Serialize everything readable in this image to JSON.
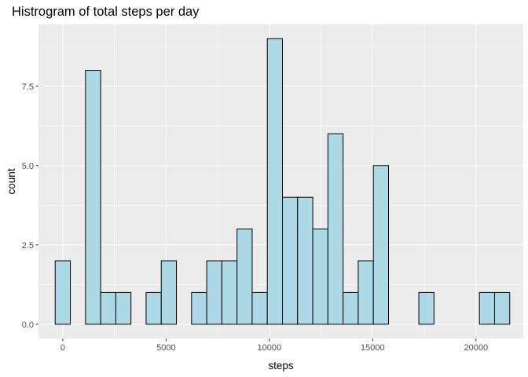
{
  "chart_data": {
    "type": "histogram",
    "title": "Histrogram of total steps per day",
    "xlabel": "steps",
    "ylabel": "count",
    "xlim": [
      -1175,
      22289
    ],
    "ylim": [
      -0.45,
      9.45
    ],
    "x_ticks": [
      0,
      5000,
      10000,
      15000,
      20000
    ],
    "x_tick_labels": [
      "0",
      "5000",
      "10000",
      "15000",
      "20000"
    ],
    "y_ticks": [
      0,
      2.5,
      5,
      7.5
    ],
    "y_tick_labels": [
      "0.0",
      "2.5",
      "5.0",
      "7.5"
    ],
    "bin_width": 733,
    "bins": [
      {
        "x0": -367,
        "x1": 367,
        "count": 2
      },
      {
        "x0": 367,
        "x1": 1100,
        "count": 0
      },
      {
        "x0": 1100,
        "x1": 1833,
        "count": 8
      },
      {
        "x0": 1833,
        "x1": 2567,
        "count": 1
      },
      {
        "x0": 2567,
        "x1": 3300,
        "count": 1
      },
      {
        "x0": 3300,
        "x1": 4033,
        "count": 0
      },
      {
        "x0": 4033,
        "x1": 4767,
        "count": 1
      },
      {
        "x0": 4767,
        "x1": 5500,
        "count": 2
      },
      {
        "x0": 5500,
        "x1": 6233,
        "count": 0
      },
      {
        "x0": 6233,
        "x1": 6967,
        "count": 1
      },
      {
        "x0": 6967,
        "x1": 7700,
        "count": 2
      },
      {
        "x0": 7700,
        "x1": 8433,
        "count": 2
      },
      {
        "x0": 8433,
        "x1": 9167,
        "count": 3
      },
      {
        "x0": 9167,
        "x1": 9900,
        "count": 1
      },
      {
        "x0": 9900,
        "x1": 10633,
        "count": 9
      },
      {
        "x0": 10633,
        "x1": 11367,
        "count": 4
      },
      {
        "x0": 11367,
        "x1": 12100,
        "count": 4
      },
      {
        "x0": 12100,
        "x1": 12833,
        "count": 3
      },
      {
        "x0": 12833,
        "x1": 13567,
        "count": 6
      },
      {
        "x0": 13567,
        "x1": 14300,
        "count": 1
      },
      {
        "x0": 14300,
        "x1": 15033,
        "count": 2
      },
      {
        "x0": 15033,
        "x1": 15767,
        "count": 5
      },
      {
        "x0": 15767,
        "x1": 16500,
        "count": 0
      },
      {
        "x0": 16500,
        "x1": 17233,
        "count": 0
      },
      {
        "x0": 17233,
        "x1": 17967,
        "count": 1
      },
      {
        "x0": 17967,
        "x1": 18700,
        "count": 0
      },
      {
        "x0": 18700,
        "x1": 19433,
        "count": 0
      },
      {
        "x0": 19433,
        "x1": 20167,
        "count": 0
      },
      {
        "x0": 20167,
        "x1": 20900,
        "count": 1
      },
      {
        "x0": 20900,
        "x1": 21633,
        "count": 1
      }
    ],
    "grid": true,
    "colors": {
      "bar_fill": "#add8e6",
      "bar_stroke": "#000000",
      "panel_background": "#ebebeb",
      "grid": "#ffffff",
      "tick_text": "#4d4d4d",
      "tick_mark": "#333333"
    }
  }
}
